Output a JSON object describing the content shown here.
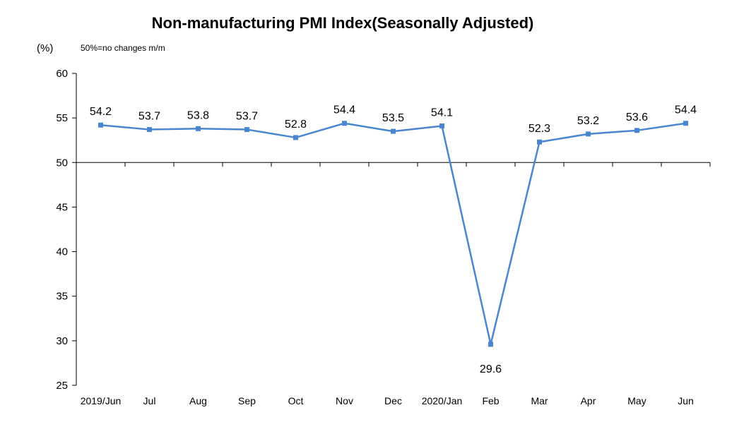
{
  "chart_data": {
    "type": "line",
    "title": "Non-manufacturing PMI Index(Seasonally Adjusted)",
    "ylabel": "(%)",
    "note": "50%=no changes  m/m",
    "categories": [
      "2019/Jun",
      "Jul",
      "Aug",
      "Sep",
      "Oct",
      "Nov",
      "Dec",
      "2020/Jan",
      "Feb",
      "Mar",
      "Apr",
      "May",
      "Jun"
    ],
    "series": [
      {
        "values": [
          54.2,
          53.7,
          53.8,
          53.7,
          52.8,
          54.4,
          53.5,
          54.1,
          29.6,
          52.3,
          53.2,
          53.6,
          54.4
        ]
      }
    ],
    "data_labels": [
      "54.2",
      "53.7",
      "53.8",
      "53.7",
      "52.8",
      "54.4",
      "53.5",
      "54.1",
      "29.6",
      "52.3",
      "53.2",
      "53.6",
      "54.4"
    ],
    "yticks": [
      "60",
      "55",
      "50",
      "45",
      "40",
      "35",
      "30",
      "25"
    ],
    "ylim": [
      25,
      60
    ],
    "reference_line": 50,
    "grid": false,
    "line_color": "#4a86d0"
  }
}
